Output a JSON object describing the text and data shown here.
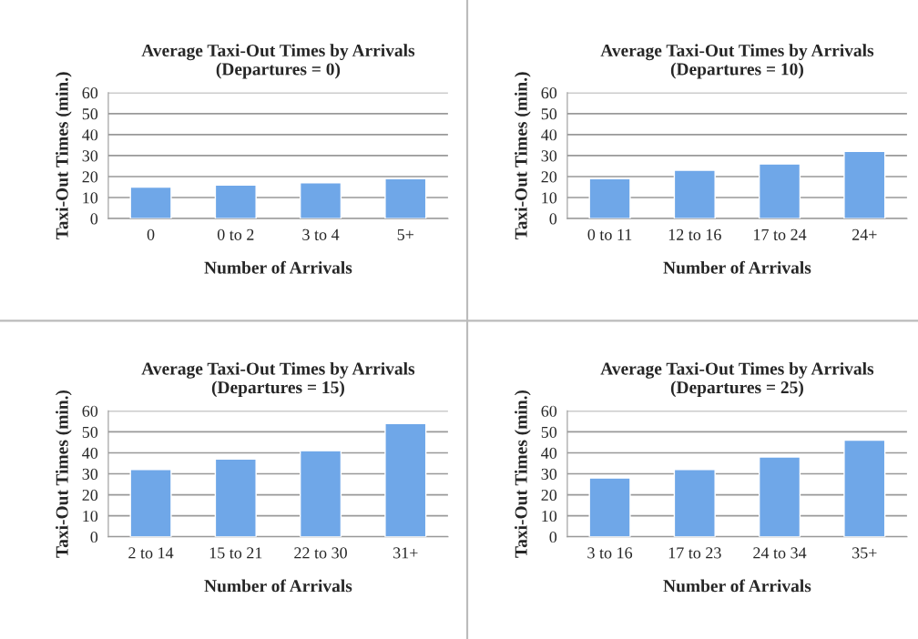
{
  "chart_data": [
    {
      "type": "bar",
      "title": "Average Taxi-Out Times by Arrivals\n(Departures = 0)",
      "xlabel": "Number of Arrivals",
      "ylabel": "Taxi-Out Times (min.)",
      "categories": [
        "0",
        "0 to 2",
        "3 to 4",
        "5+"
      ],
      "values": [
        15,
        16,
        17,
        19
      ],
      "color": "#6fa7e8",
      "ylim": [
        0,
        60
      ],
      "yticks": [
        0,
        10,
        20,
        30,
        40,
        50,
        60
      ],
      "grid": "y",
      "legend": false
    },
    {
      "type": "bar",
      "title": "Average Taxi-Out Times by Arrivals\n(Departures = 10)",
      "xlabel": "Number of Arrivals",
      "ylabel": "Taxi-Out Times (min.)",
      "categories": [
        "0 to 11",
        "12 to 16",
        "17 to 24",
        "24+"
      ],
      "values": [
        19,
        23,
        26,
        32
      ],
      "color": "#6fa7e8",
      "ylim": [
        0,
        60
      ],
      "yticks": [
        0,
        10,
        20,
        30,
        40,
        50,
        60
      ],
      "grid": "y",
      "legend": false
    },
    {
      "type": "bar",
      "title": "Average Taxi-Out Times by Arrivals\n(Departures = 15)",
      "xlabel": "Number of Arrivals",
      "ylabel": "Taxi-Out Times (min.)",
      "categories": [
        "2 to 14",
        "15 to 21",
        "22 to 30",
        "31+"
      ],
      "values": [
        32,
        37,
        41,
        54
      ],
      "color": "#6fa7e8",
      "ylim": [
        0,
        60
      ],
      "yticks": [
        0,
        10,
        20,
        30,
        40,
        50,
        60
      ],
      "grid": "y",
      "legend": false
    },
    {
      "type": "bar",
      "title": "Average Taxi-Out Times by Arrivals\n(Departures = 25)",
      "xlabel": "Number of Arrivals",
      "ylabel": "Taxi-Out Times (min.)",
      "categories": [
        "3 to 16",
        "17 to 23",
        "24 to 34",
        "35+"
      ],
      "values": [
        28,
        32,
        38,
        46
      ],
      "color": "#6fa7e8",
      "ylim": [
        0,
        60
      ],
      "yticks": [
        0,
        10,
        20,
        30,
        40,
        50,
        60
      ],
      "grid": "y",
      "legend": false
    }
  ]
}
